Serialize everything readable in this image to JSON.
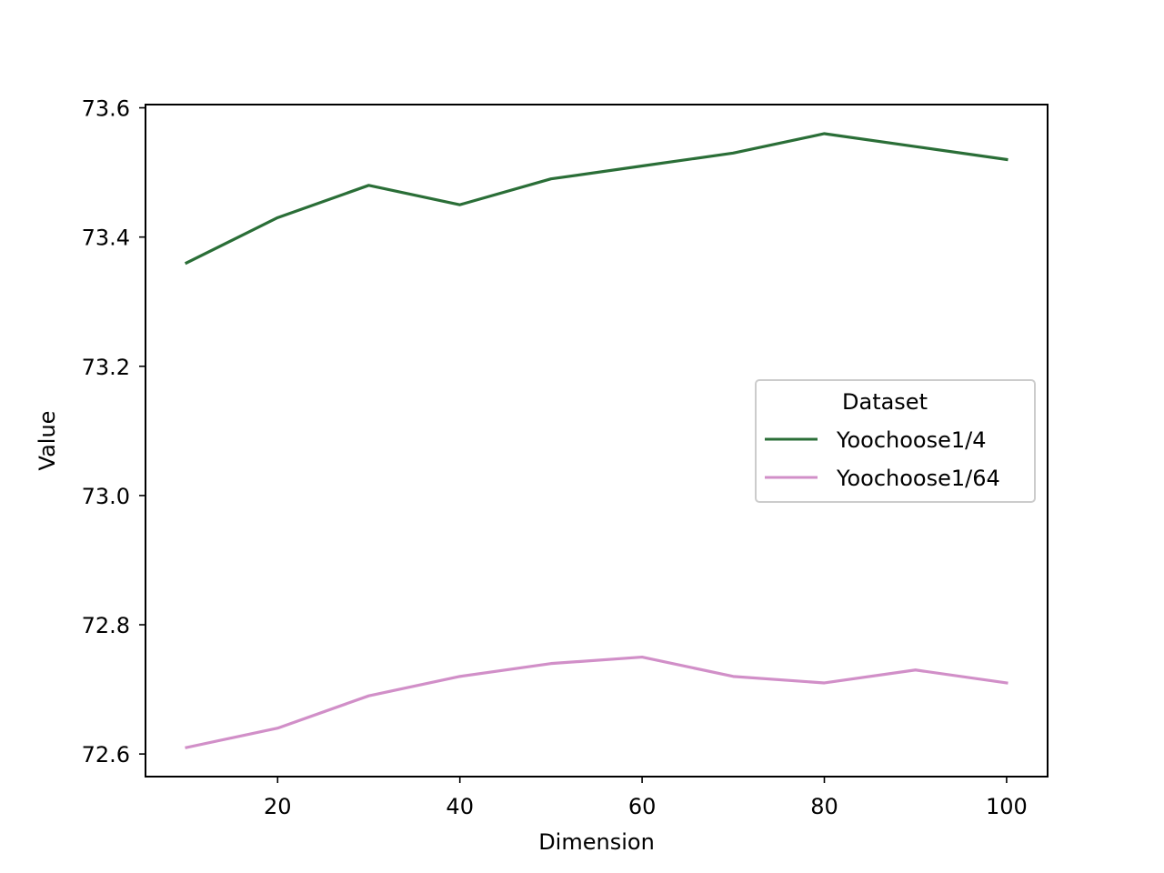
{
  "chart_data": {
    "type": "line",
    "title": "",
    "xlabel": "Dimension",
    "ylabel": "Value",
    "x": [
      10,
      20,
      30,
      40,
      50,
      60,
      70,
      80,
      90,
      100
    ],
    "xlim": [
      5.5,
      104.5
    ],
    "ylim": [
      72.565,
      73.605
    ],
    "xticks": [
      20,
      40,
      60,
      80,
      100
    ],
    "xtick_labels": [
      "20",
      "40",
      "60",
      "80",
      "100"
    ],
    "yticks": [
      72.6,
      72.8,
      73.0,
      73.2,
      73.4,
      73.6
    ],
    "ytick_labels": [
      "72.6",
      "72.8",
      "73.0",
      "73.2",
      "73.4",
      "73.6"
    ],
    "grid": false,
    "legend": {
      "title": "Dataset",
      "placement": "center-right"
    },
    "series": [
      {
        "name": "Yoochoose1/4",
        "color": "#2a6e37",
        "values": [
          73.36,
          73.43,
          73.48,
          73.45,
          73.49,
          73.51,
          73.53,
          73.56,
          73.54,
          73.52
        ]
      },
      {
        "name": "Yoochoose1/64",
        "color": "#d18fc8",
        "values": [
          72.61,
          72.64,
          72.69,
          72.72,
          72.74,
          72.75,
          72.72,
          72.71,
          72.73,
          72.71
        ]
      }
    ]
  }
}
